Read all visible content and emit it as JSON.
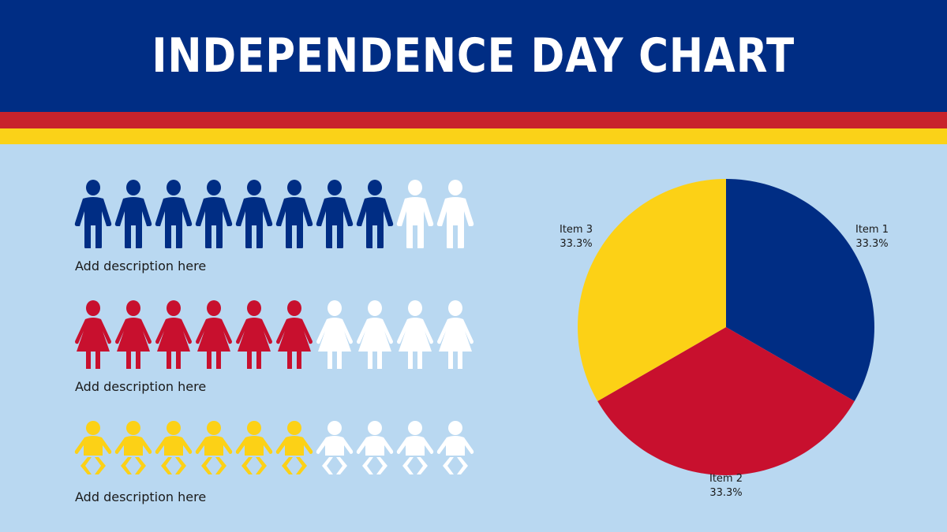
{
  "title": "INDEPENDENCE DAY CHART",
  "colors": {
    "header_bg": "#002d84",
    "stripe_red": "#c8232c",
    "stripe_yellow": "#fad218",
    "background": "#b9d8f1",
    "blue": "#002d84",
    "red": "#c8102e",
    "yellow": "#fcd116",
    "white": "#ffffff"
  },
  "pictograms": [
    {
      "icon": "man-icon",
      "color": "#002d84",
      "filled": 8,
      "total": 10,
      "description": "Add description here"
    },
    {
      "icon": "woman-icon",
      "color": "#c8102e",
      "filled": 6,
      "total": 10,
      "description": "Add description here"
    },
    {
      "icon": "baby-icon",
      "color": "#fcd116",
      "filled": 6,
      "total": 10,
      "description": "Add description here"
    }
  ],
  "chart_data": {
    "type": "pie",
    "slices": [
      {
        "name": "Item 1",
        "value": 33.3,
        "label": "33.3%",
        "color": "#002d84"
      },
      {
        "name": "Item 2",
        "value": 33.3,
        "label": "33.3%",
        "color": "#c8102e"
      },
      {
        "name": "Item 3",
        "value": 33.3,
        "label": "33.3%",
        "color": "#fcd116"
      }
    ]
  }
}
